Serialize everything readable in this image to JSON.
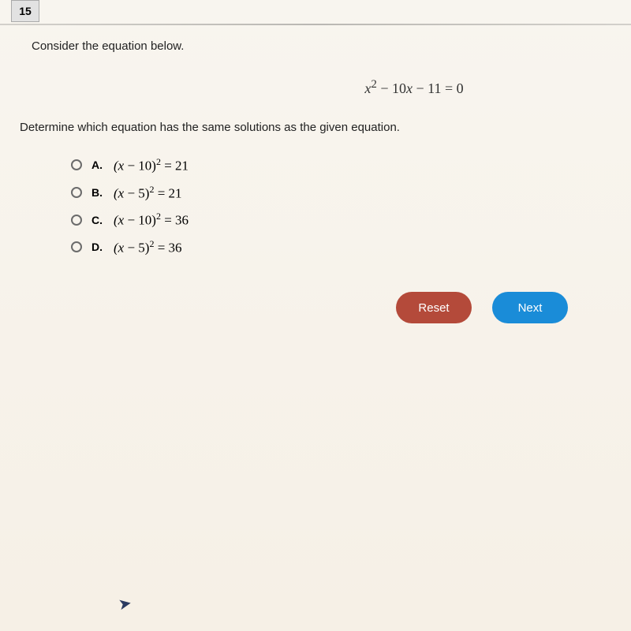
{
  "question_number": "15",
  "prompt_line1": "Consider the equation below.",
  "equation_html": "x<sup class='norm'>2</sup> <span class='norm'>− 10</span>x <span class='norm'>− 11 = 0</span>",
  "prompt_line2": "Determine which equation has the same solutions as the given equation.",
  "choices": [
    {
      "letter": "A.",
      "expr_html": "(x <span class='norm'>− 10)</span><sup>2</sup> <span class='norm'>= 21</span>"
    },
    {
      "letter": "B.",
      "expr_html": "(x <span class='norm'>− 5)</span><sup>2</sup> <span class='norm'>= 21</span>"
    },
    {
      "letter": "C.",
      "expr_html": "(x <span class='norm'>− 10)</span><sup>2</sup> <span class='norm'>= 36</span>"
    },
    {
      "letter": "D.",
      "expr_html": "(x <span class='norm'>− 5)</span><sup>2</sup> <span class='norm'>= 36</span>"
    }
  ],
  "buttons": {
    "reset": "Reset",
    "next": "Next"
  },
  "colors": {
    "reset_bg": "#b44a3a",
    "next_bg": "#1a8cd8",
    "page_bg_top": "#f8f5ef",
    "page_bg_bottom": "#f6f0e6"
  }
}
